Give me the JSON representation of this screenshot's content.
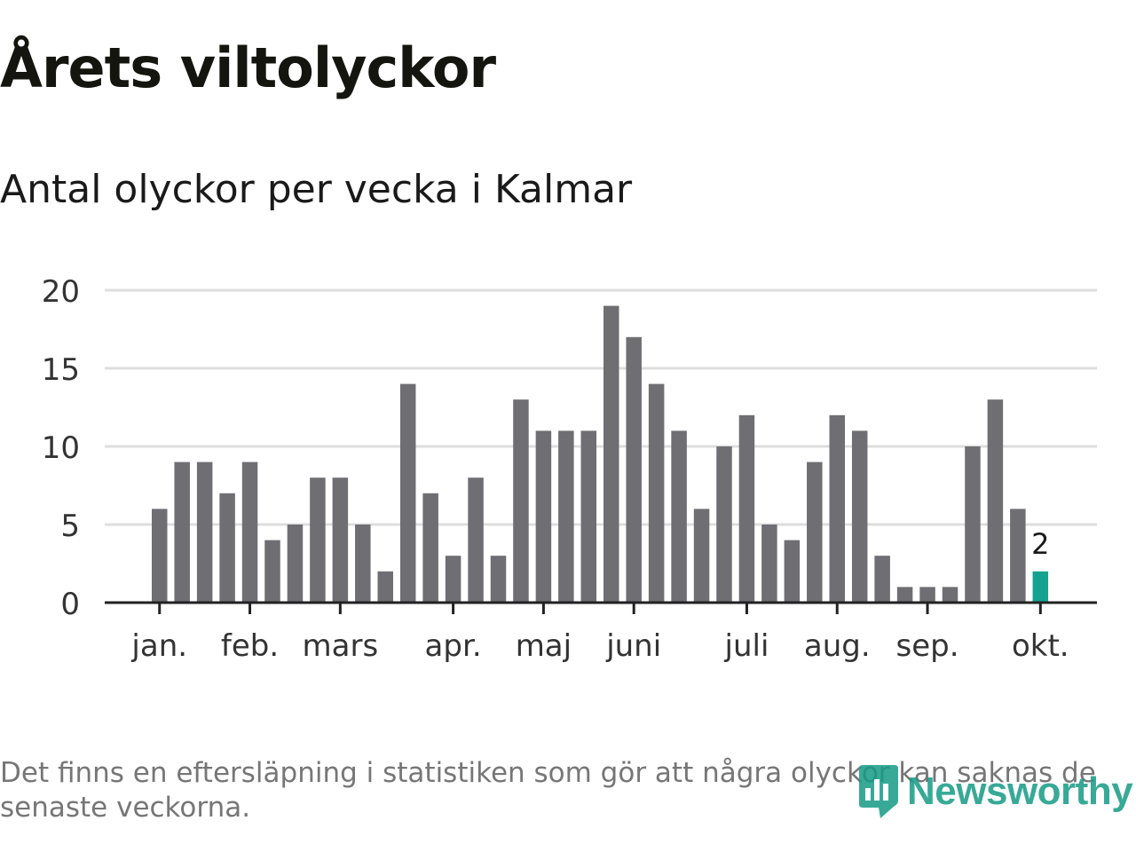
{
  "title": "Årets viltolyckor",
  "subtitle": "Antal olyckor per vecka i Kalmar",
  "footnote": "Det finns en eftersläpning i statistiken som gör att några olyckor kan saknas de senaste veckorna.",
  "logo": {
    "text": "Newsworthy",
    "icon": "bar-chart-pin-icon"
  },
  "colors": {
    "bar": "#6f6e73",
    "highlight": "#15a391",
    "grid": "#dedede",
    "axis": "#222222",
    "tick_label": "#333333",
    "logo": "#169b86"
  },
  "chart_data": {
    "type": "bar",
    "title": "Årets viltolyckor",
    "subtitle": "Antal olyckor per vecka i Kalmar",
    "xlabel": "",
    "ylabel": "",
    "ylim": [
      0,
      20
    ],
    "yticks": [
      0,
      5,
      10,
      15,
      20
    ],
    "grid": true,
    "values": [
      6,
      9,
      9,
      7,
      9,
      4,
      5,
      8,
      8,
      5,
      2,
      14,
      7,
      3,
      8,
      3,
      13,
      11,
      11,
      11,
      19,
      17,
      14,
      11,
      6,
      10,
      12,
      5,
      4,
      9,
      12,
      11,
      3,
      1,
      1,
      1,
      10,
      13,
      6,
      2
    ],
    "month_labels": [
      {
        "label": "jan.",
        "week_index": 0
      },
      {
        "label": "feb.",
        "week_index": 4
      },
      {
        "label": "mars",
        "week_index": 8
      },
      {
        "label": "apr.",
        "week_index": 13
      },
      {
        "label": "maj",
        "week_index": 17
      },
      {
        "label": "juni",
        "week_index": 21
      },
      {
        "label": "juli",
        "week_index": 26
      },
      {
        "label": "aug.",
        "week_index": 30
      },
      {
        "label": "sep.",
        "week_index": 34
      },
      {
        "label": "okt.",
        "week_index": 39
      }
    ],
    "highlight_index": 39,
    "highlight_label": "2"
  }
}
